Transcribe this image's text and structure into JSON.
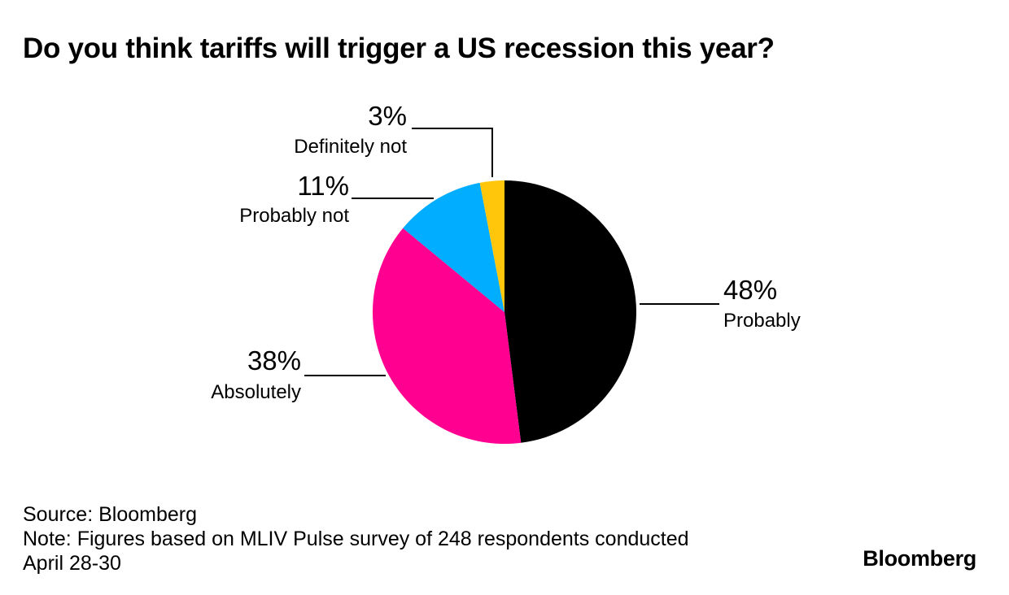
{
  "title": "Do you think tariffs will trigger a US recession this year?",
  "chart_data": {
    "type": "pie",
    "title": "Do you think tariffs will trigger a US recession this year?",
    "slices": [
      {
        "label": "Probably",
        "value": 48,
        "display": "48%",
        "color": "#000000"
      },
      {
        "label": "Absolutely",
        "value": 38,
        "display": "38%",
        "color": "#ff0090"
      },
      {
        "label": "Probably not",
        "value": 11,
        "display": "11%",
        "color": "#00adff"
      },
      {
        "label": "Definitely not",
        "value": 3,
        "display": "3%",
        "color": "#ffc60b"
      }
    ],
    "start": "12 o'clock",
    "direction": "clockwise"
  },
  "footer": {
    "source": "Source: Bloomberg",
    "note_line1": "Note: Figures based on MLIV Pulse survey of 248 respondents conducted",
    "note_line2": "April 28-30"
  },
  "brand": "Bloomberg"
}
